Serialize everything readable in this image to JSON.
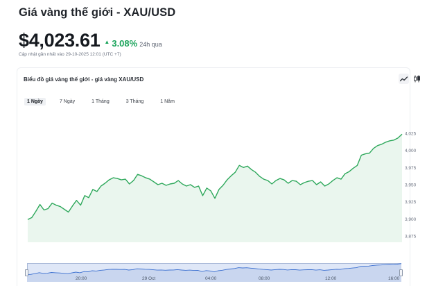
{
  "header": {
    "title": "Giá vàng thế giới - XAU/USD"
  },
  "price": {
    "value": "$4,023.61",
    "change_arrow": "▲",
    "change_pct": "3.08%",
    "change_period": "24h qua",
    "updated": "Cập nhật gần nhất vào 29-10-2025 12:01 (UTC +7)"
  },
  "chart_card": {
    "title": "Biểu đồ giá vàng thế giới - giá vàng XAU/USD",
    "chart_type_buttons": [
      {
        "name": "line-chart-button",
        "icon": "line-chart-icon",
        "active": true
      },
      {
        "name": "candlestick-button",
        "icon": "candlestick-icon",
        "active": false
      }
    ],
    "range_tabs": [
      {
        "label": "1 Ngày",
        "active": true
      },
      {
        "label": "7 Ngày",
        "active": false
      },
      {
        "label": "1 Tháng",
        "active": false
      },
      {
        "label": "3 Tháng",
        "active": false
      },
      {
        "label": "1 Năm",
        "active": false
      }
    ]
  },
  "colors": {
    "up": "#19a35a",
    "line": "#2ea85b",
    "area": "#eaf6ee",
    "navigator_bg": "#dfe7f7",
    "navigator_line": "#3a6fd0"
  },
  "chart_data": {
    "type": "area",
    "title": "",
    "xlabel": "",
    "ylabel": "",
    "y_axis_position": "right",
    "ylim": [
      3872,
      4030
    ],
    "y_ticks": [
      3875,
      3900,
      3925,
      3950,
      3975,
      4000,
      4025
    ],
    "y_tick_labels": [
      "3,875",
      "3,900",
      "3,925",
      "3,950",
      "3,975",
      "4,000",
      "4,025"
    ],
    "grid": false,
    "legend": "none",
    "series": [
      {
        "values": [
          3899,
          3902,
          3911,
          3921,
          3913,
          3915,
          3923,
          3920,
          3918,
          3914,
          3910,
          3919,
          3927,
          3920,
          3934,
          3931,
          3943,
          3940,
          3948,
          3952,
          3957,
          3960,
          3959,
          3957,
          3958,
          3951,
          3956,
          3965,
          3963,
          3960,
          3958,
          3954,
          3950,
          3952,
          3949,
          3951,
          3952,
          3956,
          3951,
          3948,
          3950,
          3946,
          3948,
          3934,
          3945,
          3941,
          3930,
          3943,
          3949,
          3957,
          3963,
          3968,
          3978,
          3975,
          3977,
          3972,
          3968,
          3962,
          3958,
          3956,
          3951,
          3956,
          3959,
          3957,
          3952,
          3956,
          3955,
          3950,
          3953,
          3955,
          3956,
          3950,
          3954,
          3948,
          3951,
          3956,
          3960,
          3958,
          3966,
          3969,
          3974,
          3978,
          3993,
          3995,
          3996,
          4003,
          4007,
          4009,
          4012,
          4014,
          4015,
          4018,
          4023.61
        ]
      }
    ]
  },
  "navigator": {
    "x_labels": [
      "20:00",
      "29 Oct",
      "04:00",
      "08:00",
      "12:00",
      "16:00"
    ]
  }
}
